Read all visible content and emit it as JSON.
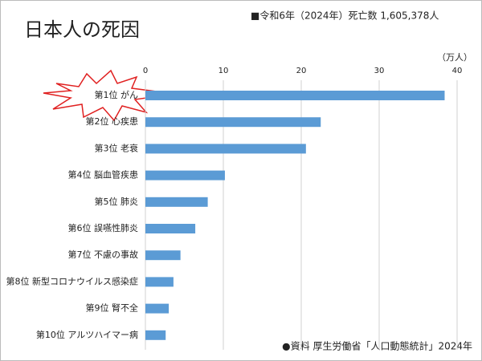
{
  "chart_data": {
    "type": "bar",
    "orientation": "horizontal",
    "title": "日本人の死因",
    "subtitle": "■令和6年（2024年）死亡数 1,605,378人",
    "unit_label": "（万人）",
    "source": "●資料 厚生労働省「人口動態統計」2024年",
    "categories": [
      "第1位 がん",
      "第2位 心疾患",
      "第3位 老衰",
      "第4位 脳血管疾患",
      "第5位 肺炎",
      "第6位 誤嚥性肺炎",
      "第7位 不慮の事故",
      "第8位 新型コロナウイルス感染症",
      "第9位 腎不全",
      "第10位 アルツハイマー病"
    ],
    "values": [
      38.4,
      22.5,
      20.6,
      10.2,
      8.0,
      6.4,
      4.5,
      3.6,
      3.0,
      2.6
    ],
    "color": "#5b9bd5",
    "xlim": [
      0,
      40
    ],
    "xticks": [
      0,
      10,
      20,
      30,
      40
    ],
    "grid": true
  }
}
